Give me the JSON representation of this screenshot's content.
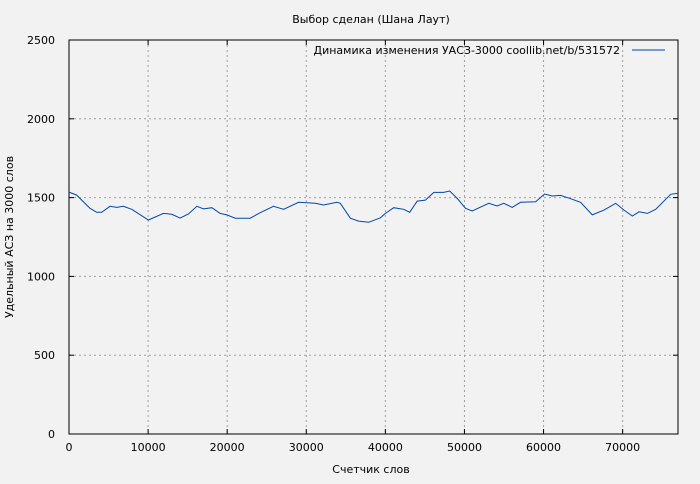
{
  "chart_data": {
    "type": "line",
    "title": "Выбор сделан (Шана Лаут)",
    "xlabel": "Счетчик слов",
    "ylabel": "Удельный АСЗ на 3000 слов",
    "xlim": [
      0,
      77000
    ],
    "ylim": [
      0,
      2500
    ],
    "xticks": [
      0,
      10000,
      20000,
      30000,
      40000,
      50000,
      60000,
      70000
    ],
    "yticks": [
      0,
      500,
      1000,
      1500,
      2000,
      2500
    ],
    "grid": true,
    "legend_position": "top-right",
    "background": "#f2f2f2",
    "series": [
      {
        "name": "Динамика изменения УАСЗ-3000  coollib.net/b/531572",
        "color": "#0047ab",
        "x": [
          0,
          975,
          2660,
          3500,
          4140,
          5190,
          6040,
          6870,
          7940,
          10040,
          11940,
          13000,
          14050,
          15100,
          16170,
          17000,
          18070,
          19110,
          19960,
          21010,
          22910,
          24180,
          25860,
          27130,
          29030,
          31140,
          32190,
          33890,
          34300,
          35570,
          36620,
          37890,
          39370,
          40000,
          41050,
          42320,
          43080,
          44020,
          45060,
          46120,
          47380,
          48140,
          49080,
          50130,
          50980,
          53080,
          54140,
          54980,
          56040,
          57090,
          58990,
          60130,
          61110,
          62150,
          63420,
          64690,
          66170,
          67640,
          69120,
          70170,
          71230,
          72070,
          73130,
          74180,
          76080,
          77000
        ],
        "y": [
          1535,
          1516,
          1432,
          1407,
          1407,
          1445,
          1438,
          1445,
          1426,
          1358,
          1400,
          1394,
          1370,
          1396,
          1445,
          1428,
          1436,
          1400,
          1390,
          1369,
          1369,
          1404,
          1445,
          1426,
          1470,
          1464,
          1453,
          1470,
          1464,
          1369,
          1351,
          1343,
          1372,
          1400,
          1436,
          1426,
          1407,
          1478,
          1484,
          1533,
          1533,
          1542,
          1495,
          1432,
          1415,
          1464,
          1447,
          1464,
          1438,
          1470,
          1474,
          1523,
          1510,
          1514,
          1493,
          1470,
          1390,
          1421,
          1464,
          1421,
          1383,
          1410,
          1400,
          1426,
          1521,
          1527
        ]
      }
    ]
  }
}
